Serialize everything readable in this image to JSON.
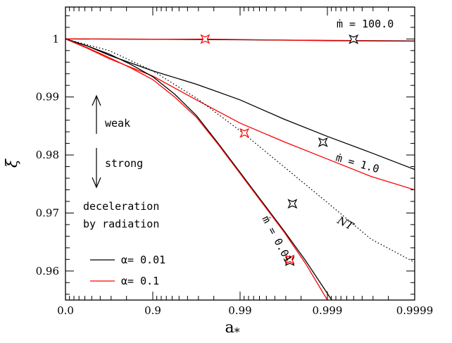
{
  "chart_data": {
    "type": "line",
    "xlabel": "a",
    "xlabel_sub": "*",
    "ylabel": "ξ",
    "x_ticks": [
      "0.0",
      "0.9",
      "0.99",
      "0.999",
      "0.9999"
    ],
    "x_tick_pos": [
      0,
      1,
      2,
      3,
      4
    ],
    "y_ticks": [
      "0.96",
      "0.97",
      "0.98",
      "0.99",
      "1"
    ],
    "y_tick_vals": [
      0.96,
      0.97,
      0.98,
      0.99,
      1.0
    ],
    "xlim": [
      0,
      4
    ],
    "ylim": [
      0.955,
      1.0055
    ],
    "x_scale": "log(1-a*), one decade per major tick",
    "series": [
      {
        "color": "#000000",
        "dash": "none",
        "alpha": "0.01",
        "mdot": "100.0",
        "x": [
          0,
          1,
          2,
          3,
          4
        ],
        "y": [
          1.0,
          0.99995,
          0.99985,
          0.99975,
          0.99965
        ]
      },
      {
        "color": "#ff0000",
        "dash": "none",
        "alpha": "0.1",
        "mdot": "100.0",
        "x": [
          0,
          1,
          1.6,
          2,
          3,
          4
        ],
        "y": [
          1.0,
          0.99995,
          0.99998,
          0.9999,
          0.9997,
          0.9996
        ]
      },
      {
        "color": "#000000",
        "dash": "none",
        "alpha": "0.01",
        "mdot": "1.0",
        "x": [
          0,
          0.25,
          0.5,
          1,
          1.5,
          2,
          2.5,
          3,
          3.5,
          4
        ],
        "y": [
          1.0,
          0.9988,
          0.9972,
          0.9945,
          0.9922,
          0.9895,
          0.9862,
          0.9832,
          0.9804,
          0.9775
        ]
      },
      {
        "color": "#ff0000",
        "dash": "none",
        "alpha": "0.1",
        "mdot": "1.0",
        "x": [
          0,
          0.25,
          0.5,
          1,
          1.5,
          2,
          2.5,
          3,
          3.5,
          4
        ],
        "y": [
          1.0,
          0.9984,
          0.9966,
          0.9936,
          0.9895,
          0.9855,
          0.9823,
          0.9793,
          0.9763,
          0.974
        ]
      },
      {
        "color": "#000000",
        "dash": "none",
        "alpha": "0.01",
        "mdot": "0.01",
        "x": [
          0,
          0.25,
          0.5,
          0.75,
          1,
          1.25,
          1.5,
          1.75,
          2,
          2.25,
          2.5,
          2.75,
          3.05
        ],
        "y": [
          1.0,
          0.9988,
          0.9974,
          0.9956,
          0.9935,
          0.9905,
          0.9868,
          0.982,
          0.977,
          0.972,
          0.967,
          0.9618,
          0.955
        ]
      },
      {
        "color": "#ff0000",
        "dash": "none",
        "alpha": "0.1",
        "mdot": "0.01",
        "x": [
          0,
          0.25,
          0.5,
          0.75,
          1,
          1.25,
          1.5,
          1.75,
          2,
          2.25,
          2.5,
          2.75,
          3.0
        ],
        "y": [
          1.0,
          0.9985,
          0.9968,
          0.995,
          0.993,
          0.99,
          0.9865,
          0.9818,
          0.9768,
          0.9718,
          0.9668,
          0.9613,
          0.955
        ]
      },
      {
        "color": "#000000",
        "dash": "dotted",
        "name": "NT",
        "x": [
          0,
          0.5,
          1,
          1.5,
          2,
          2.5,
          3,
          3.5,
          4
        ],
        "y": [
          1.0,
          0.998,
          0.9945,
          0.9898,
          0.9842,
          0.978,
          0.9718,
          0.9655,
          0.9615
        ]
      }
    ],
    "markers": [
      {
        "color": "#ff0000",
        "x": 1.6,
        "y": 0.99998
      },
      {
        "color": "#000000",
        "x": 3.3,
        "y": 0.99995
      },
      {
        "color": "#ff0000",
        "x": 2.05,
        "y": 0.9838
      },
      {
        "color": "#000000",
        "x": 2.95,
        "y": 0.9822
      },
      {
        "color": "#000000",
        "x": 2.6,
        "y": 0.9716
      },
      {
        "color": "#000000",
        "x": 2.57,
        "y": 0.9617
      },
      {
        "color": "#ff0000",
        "x": 2.57,
        "y": 0.962
      }
    ],
    "annotations": {
      "mdot_100": "ṁ = 100.0",
      "mdot_1": "ṁ = 1.0",
      "mdot_001": "ṁ = 0.01",
      "nt": "NT",
      "weak": "weak",
      "strong": "strong",
      "decel_line1": "deceleration",
      "decel_line2": "by radiation"
    },
    "legend": {
      "placement": "bottom-left",
      "entries": [
        {
          "label": "α= 0.01",
          "color": "#000000"
        },
        {
          "label": "α= 0.1",
          "color": "#ff0000"
        }
      ]
    }
  }
}
